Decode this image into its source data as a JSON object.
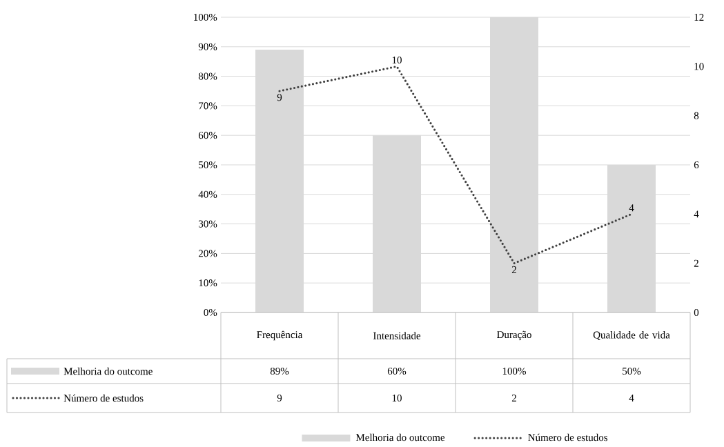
{
  "chart_data": {
    "type": "bar",
    "categories": [
      "Frequência",
      "Intensidade",
      "Duração",
      "Qualidade de vida"
    ],
    "series": [
      {
        "name": "Melhoria do outcome",
        "color": "#d9d9d9",
        "values": [
          89,
          60,
          100,
          50
        ],
        "value_labels": [
          "89%",
          "60%",
          "100%",
          "50%"
        ]
      },
      {
        "name": "Número de estudos",
        "type": "line",
        "axis": "y2",
        "color": "#404040",
        "line_style": "dotted",
        "values": [
          9,
          10,
          2,
          4
        ],
        "value_labels": [
          "9",
          "10",
          "2",
          "4"
        ]
      }
    ],
    "ylim": [
      0,
      100
    ],
    "yticks": [
      {
        "value": 0,
        "label": "0%"
      },
      {
        "value": 10,
        "label": "10%"
      },
      {
        "value": 20,
        "label": "20%"
      },
      {
        "value": 30,
        "label": "30%"
      },
      {
        "value": 40,
        "label": "40%"
      },
      {
        "value": 50,
        "label": "50%"
      },
      {
        "value": 60,
        "label": "60%"
      },
      {
        "value": 70,
        "label": "70%"
      },
      {
        "value": 80,
        "label": "80%"
      },
      {
        "value": 90,
        "label": "90%"
      },
      {
        "value": 100,
        "label": "100%"
      }
    ],
    "y2lim": [
      0,
      12
    ],
    "y2ticks": [
      0,
      2,
      4,
      6,
      8,
      10,
      12
    ],
    "grid": "y",
    "legend": "bottom"
  }
}
